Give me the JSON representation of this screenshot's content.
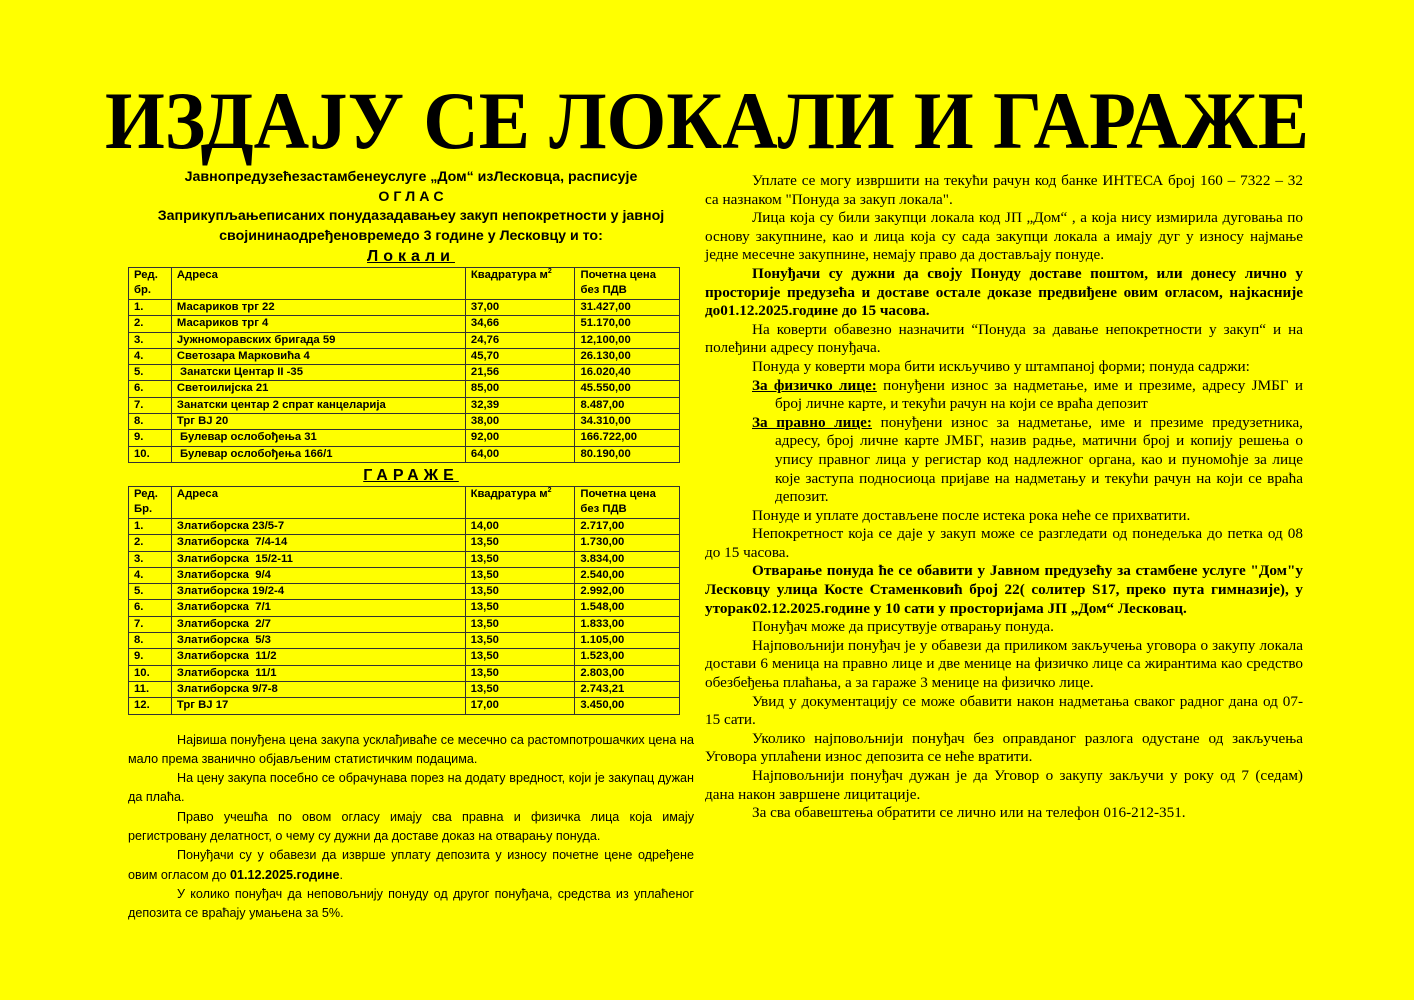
{
  "title": "ИЗДАЈУ СЕ ЛОКАЛИ И ГАРАЖЕ",
  "colors": {
    "background": "#ffff00",
    "text": "#000000"
  },
  "header": {
    "line1": "Јавнопредузећезастамбенеуслуге „Дом“  изЛесковца, расписује",
    "line2": "О Г Л А С",
    "line3": "Заприкупљањеписаних понудазадавањеу закуп непокретности у јавној",
    "line4": "својининаодређеновремедо 3 године у Лесковцу и то:"
  },
  "lokali": {
    "heading": "Локали",
    "columns": [
      "Ред. бр.",
      "Адреса",
      "Квадратура м",
      "Почетна цена без ПДВ"
    ],
    "rows": [
      [
        "1.",
        "Масариков трг 22",
        "37,00",
        "31.427,00"
      ],
      [
        "2.",
        "Масариков трг 4",
        "34,66",
        "51.170,00"
      ],
      [
        "3.",
        "Јужноморавских бригада 59",
        "24,76",
        "12,100,00"
      ],
      [
        "4.",
        "Светозара Марковића 4",
        "45,70",
        "26.130,00"
      ],
      [
        "5.",
        " Занатски Центар II -35",
        "21,56",
        "16.020,40"
      ],
      [
        "6.",
        "Светоилијска 21",
        "85,00",
        "45.550,00"
      ],
      [
        "7.",
        "Занатски центар 2 спрат канцеларија",
        "32,39",
        "8.487,00"
      ],
      [
        "8.",
        "Трг ВЈ 20",
        "38,00",
        "34.310,00"
      ],
      [
        "9.",
        " Булевар ослобођења 31",
        "92,00",
        "166.722,00"
      ],
      [
        "10.",
        " Булевар ослобођења 166/1",
        "64,00",
        "80.190,00"
      ]
    ]
  },
  "garaze": {
    "heading": "ГАРАЖЕ",
    "columns": [
      "Ред. Бр.",
      "Адреса",
      "Квадратура м",
      "Почетна цена без ПДВ"
    ],
    "rows": [
      [
        "1.",
        "Златиборска 23/5-7",
        "14,00",
        "2.717,00"
      ],
      [
        "2.",
        "Златиборска  7/4-14",
        "13,50",
        "1.730,00"
      ],
      [
        "3.",
        "Златиборска  15/2-11",
        "13,50",
        "3.834,00"
      ],
      [
        "4.",
        "Златиборска  9/4",
        "13,50",
        "2.540,00"
      ],
      [
        "5.",
        "Златиборска 19/2-4",
        "13,50",
        "2.992,00"
      ],
      [
        "6.",
        "Златиборска  7/1",
        "13,50",
        "1.548,00"
      ],
      [
        "7.",
        "Златиборска  2/7",
        "13,50",
        "1.833,00"
      ],
      [
        "8.",
        "Златиборска  5/3",
        "13,50",
        "1.105,00"
      ],
      [
        "9.",
        "Златиборска  11/2",
        "13,50",
        "1.523,00"
      ],
      [
        "10.",
        "Златиборска  11/1",
        "13,50",
        "2.803,00"
      ],
      [
        "11.",
        "Златиборска 9/7-8",
        "13,50",
        "2.743,21"
      ],
      [
        "12.",
        "Трг ВЈ 17",
        "17,00",
        "3.450,00"
      ]
    ]
  },
  "left_paragraphs": [
    {
      "text": "Највиша понуђена цена  закупа  усклађиваће се месечно са растомпотрошачких цена на мало према званично објављеним статистичким подацима."
    },
    {
      "text": "На цену закупа посебно се обрачунава порез на додату вредност, који је закупац дужан да плаћа."
    },
    {
      "text": "Право учешћа по овом огласу имају сва правна и физичка лица која имају регистровану делатност, о чему су дужни да доставе доказ на отварању понуда."
    },
    {
      "text": "Понуђачи  су у обавези да изврше уплату депозита у износу почетне цене одређене овим огласом до   ",
      "bold": "01.12.2025.године",
      "tail": "."
    },
    {
      "text": "У колико понуђач да неповољнију понуду од другог понуђача, средства из уплаћеног депозита се враћају умањена за 5%."
    }
  ],
  "right_paragraphs": [
    {
      "text": "Уплате се могу извршити  на текући рачун код банке  ИНТЕСА број 160 – 7322 – 32 са назнаком \"Понуда за закуп локала\"."
    },
    {
      "text": "Лица која су били закупци локала код ЈП „Дом“ , а која нису измирила дуговања по основу закупнине, као и лица која су сада закупци локала а имају дуг у износу најмање једне месечне закупнине, немају право да достављају понуде."
    },
    {
      "text": "Понуђачи су дужни да своју Понуду  доставе поштом, или донесу лично у просторије предузећа и доставе остале доказе  предвиђене овим огласом, најкасније до01.12.2025.године  до  15 часова.",
      "is_bold": true
    },
    {
      "text": "На коверти обавезно назначити “Понуда за давање непокретности у закуп“ и на полеђини адресу понуђача."
    },
    {
      "text": " Понуда у коверти мора бити искључиво у штампаној форми; понуда садржи:"
    },
    {
      "label": "За физичко лице:",
      "text": "  понуђени износ за надметање, име и презиме, адресу ЈМБГ и број личне карте, и текући рачун на који се враћа депозит"
    },
    {
      "label": "За  правно  лице:",
      "text": " понуђени износ за надметање,   име и презиме предузетника, адресу, број личне карте ЈМБГ, назив радње, матични број и копију решења о упису правног лица у регистар код надлежног органа, као и пуномоћје за лице које заступа подносиоца пријаве на надметању и текући рачун на који се враћа депозит."
    },
    {
      "text": "Понуде и уплате достављене после истека рока неће се прихватити."
    },
    {
      "text": "Непокретност која се даје у закуп  може се разгледати  од понедељка до петка  од 08 до 15 часова."
    },
    {
      "text": "Отварање понуда ће се обавити у Јавном предузећу за стамбене услуге \"Дом\"у Лесковцу улица   Косте Стаменковић број 22( солитер S17, преко пута гимназије),  у уторак02.12.2025.године у  10 сати у просторијама ЈП „Дом“ Лесковац.",
      "is_bold": true
    },
    {
      "text": "Понуђач може да присутвује отварању понуда."
    },
    {
      "text": "Најповољнији понуђач је у обавези да приликом закључења уговора о закупу локала достави 6 меница на правно лице и две менице на физичко лице са жирантима као средство обезбеђења плаћања, а за гараже 3 менице на физичко лице."
    },
    {
      "text": "Увид у документацију се може обавити након надметања сваког радног дана од 07-15 сати."
    },
    {
      "text": "Уколико најповољнији понуђач без оправданог разлога одустане од закључења Уговора уплаћени износ  депозита се неће вратити."
    },
    {
      "text": "Најповољнији понуђач дужан је да Уговор о закупу закључи у року од 7 (седам) дана након завршене лицитације."
    },
    {
      "text": " За сва обавештења обратити се лично или на телефон 016-212-351."
    }
  ]
}
